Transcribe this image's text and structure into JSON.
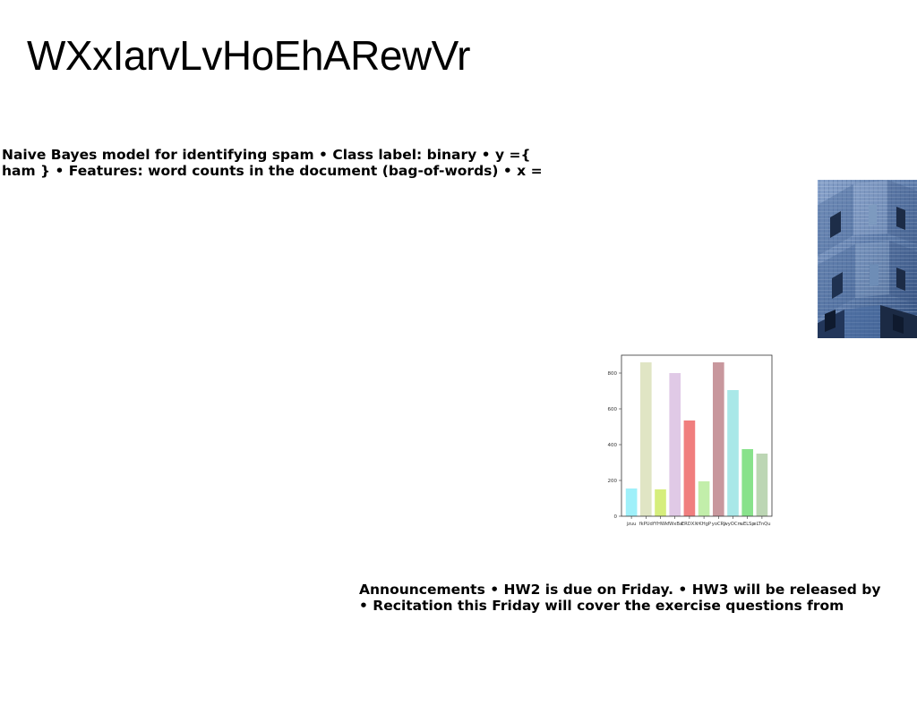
{
  "slide": {
    "title": "WXxIarvLvHoEhARewVr"
  },
  "paragraphs": {
    "spam": {
      "line1": "Naive Bayes model for identifying spam • Class label: binary • y ={",
      "line2": "ham } • Features: word counts in the document (bag-of-words) • x ="
    },
    "announcements": {
      "line1": "Announcements • HW2 is due on Friday. • HW3 will be released by",
      "line2": "• Recitation this Friday will cover the exercise questions from"
    }
  },
  "photo": {
    "subject": "building facade"
  },
  "chart_data": {
    "type": "bar",
    "categories": [
      "jzuu",
      "fkPUd",
      "fYHWk",
      "fWxBa",
      "ERDXX",
      "rKHgP",
      "yoCRJ",
      "wyOCm",
      "uELSp",
      "eLTnQu"
    ],
    "values": [
      155,
      860,
      150,
      800,
      535,
      195,
      860,
      705,
      375,
      350
    ],
    "ylim": [
      0,
      900
    ],
    "yticks": [
      "0",
      "200",
      "400",
      "600",
      "800"
    ],
    "colors": [
      "#9ff0fa",
      "#e0e5c4",
      "#d6ee7c",
      "#e0c9e6",
      "#f07e7e",
      "#c2eeaa",
      "#c8979d",
      "#a9e8e8",
      "#88e28b",
      "#bcd6b4"
    ],
    "grid": false
  }
}
